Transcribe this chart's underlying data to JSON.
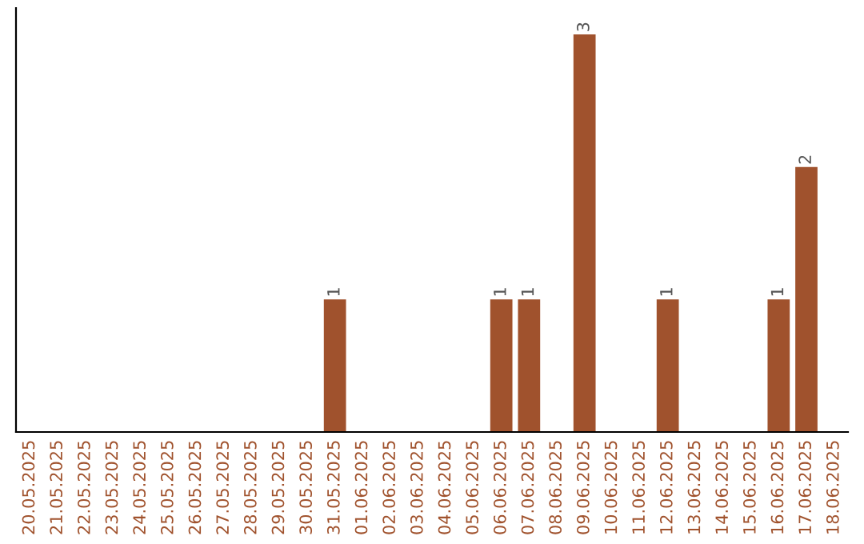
{
  "chart_data": {
    "type": "bar",
    "categories": [
      "20.05.2025",
      "21.05.2025",
      "22.05.2025",
      "23.05.2025",
      "24.05.2025",
      "25.05.2025",
      "26.05.2025",
      "27.05.2025",
      "28.05.2025",
      "29.05.2025",
      "30.05.2025",
      "31.05.2025",
      "01.06.2025",
      "02.06.2025",
      "03.06.2025",
      "04.06.2025",
      "05.06.2025",
      "06.06.2025",
      "07.06.2025",
      "08.06.2025",
      "09.06.2025",
      "10.06.2025",
      "11.06.2025",
      "12.06.2025",
      "13.06.2025",
      "14.06.2025",
      "15.06.2025",
      "16.06.2025",
      "17.06.2025",
      "18.06.2025"
    ],
    "values": [
      0,
      0,
      0,
      0,
      0,
      0,
      0,
      0,
      0,
      0,
      0,
      1,
      0,
      0,
      0,
      0,
      0,
      1,
      1,
      0,
      3,
      0,
      0,
      1,
      0,
      0,
      0,
      1,
      2,
      0
    ],
    "value_labels": [
      null,
      null,
      null,
      null,
      null,
      null,
      null,
      null,
      null,
      null,
      null,
      "1",
      null,
      null,
      null,
      null,
      null,
      "1",
      "1",
      null,
      "3",
      null,
      null,
      "1",
      null,
      null,
      null,
      "1",
      "2",
      null
    ],
    "color": "#a0522d",
    "ylim": [
      0,
      3.2
    ],
    "tick_labels": "x",
    "grid": false,
    "legend": false
  }
}
